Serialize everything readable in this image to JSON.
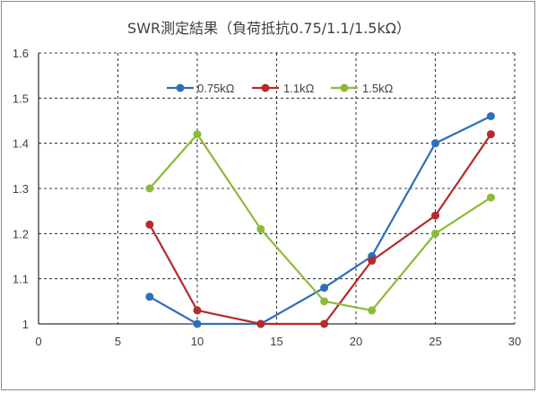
{
  "chart_data": {
    "type": "scatter",
    "title": "SWR測定結果（負荷抵抗0.75/1.1/1.5kΩ）",
    "xlabel": "",
    "ylabel": "",
    "xlim": [
      0,
      30
    ],
    "ylim": [
      1,
      1.6
    ],
    "x_ticks": [
      0,
      5,
      10,
      15,
      20,
      25,
      30
    ],
    "y_ticks": [
      1,
      1.1,
      1.2,
      1.3,
      1.4,
      1.5,
      1.6
    ],
    "x_tick_labels": [
      "0",
      "5",
      "10",
      "15",
      "20",
      "25",
      "30"
    ],
    "y_tick_labels": [
      "1",
      "1.1",
      "1.2",
      "1.3",
      "1.4",
      "1.5",
      "1.6"
    ],
    "grid": true,
    "lines_with_markers": true,
    "legend_position": "top-center",
    "series": [
      {
        "name": "0.75kΩ",
        "color": "#2e6fba",
        "points": [
          [
            7,
            1.06
          ],
          [
            10,
            1.0
          ],
          [
            14,
            1.0
          ],
          [
            18,
            1.08
          ],
          [
            21,
            1.15
          ],
          [
            25,
            1.4
          ],
          [
            28.5,
            1.46
          ]
        ]
      },
      {
        "name": "1.1kΩ",
        "color": "#b52a2a",
        "points": [
          [
            7,
            1.22
          ],
          [
            10,
            1.03
          ],
          [
            14,
            1.0
          ],
          [
            18,
            1.0
          ],
          [
            21,
            1.14
          ],
          [
            25,
            1.24
          ],
          [
            28.5,
            1.42
          ]
        ]
      },
      {
        "name": "1.5kΩ",
        "color": "#8dba3a",
        "points": [
          [
            7,
            1.3
          ],
          [
            10,
            1.42
          ],
          [
            14,
            1.21
          ],
          [
            18,
            1.05
          ],
          [
            21,
            1.03
          ],
          [
            25,
            1.2
          ],
          [
            28.5,
            1.28
          ]
        ]
      }
    ]
  }
}
